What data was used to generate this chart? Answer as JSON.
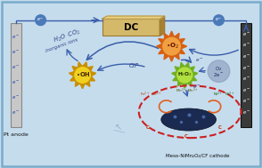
{
  "bg_color": "#c5dced",
  "border_color": "#7aabca",
  "title_bottom_left": "Pt anode",
  "title_bottom_right": "Meso-NiMn₂O₄/CF cathode",
  "dc_box_color": "#d4b96a",
  "dc_text": "DC",
  "anode_color": "#c8c8c8",
  "cathode_color": "#3a3a3a",
  "o2_burst_color_outer": "#d86010",
  "o2_burst_color_inner": "#f0a040",
  "oh_burst_color_outer": "#c89000",
  "oh_burst_color_inner": "#f0d020",
  "h2o2_burst_color_outer": "#70b020",
  "h2o2_burst_color_inner": "#b0e040",
  "arrow_color": "#3a5eaa",
  "dashed_ellipse_color": "#cc2020",
  "orange_arrows_color": "#e06020",
  "wire_color": "#3a5eaa",
  "o2_circle_color": "#8898bb"
}
